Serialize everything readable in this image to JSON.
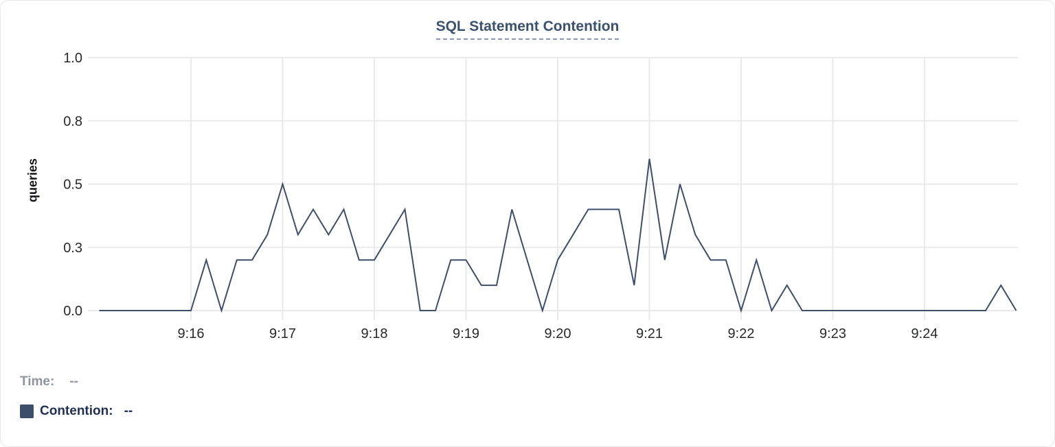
{
  "chart": {
    "title": "SQL Statement Contention"
  },
  "chart_data": {
    "type": "line",
    "title": "SQL Statement Contention",
    "xlabel": "",
    "ylabel": "queries",
    "ylim": [
      0,
      1
    ],
    "grid": true,
    "legend_position": "bottom-left",
    "x_start": "9:15:00",
    "x_end": "9:25:00",
    "interval_seconds": 10,
    "x_tick_labels": [
      "9:16",
      "9:17",
      "9:18",
      "9:19",
      "9:20",
      "9:21",
      "9:22",
      "9:23",
      "9:24"
    ],
    "y_ticks": [
      {
        "value": 0,
        "label": "0.0"
      },
      {
        "value": 0.25,
        "label": "0.3"
      },
      {
        "value": 0.5,
        "label": "0.5"
      },
      {
        "value": 0.75,
        "label": "0.8"
      },
      {
        "value": 1.0,
        "label": "1.0"
      }
    ],
    "series": [
      {
        "name": "Contention",
        "color": "#3d4e6b",
        "points": [
          [
            "9:15:00",
            0.0
          ],
          [
            "9:15:10",
            0.0
          ],
          [
            "9:15:20",
            0.0
          ],
          [
            "9:15:30",
            0.0
          ],
          [
            "9:15:40",
            0.0
          ],
          [
            "9:15:50",
            0.0
          ],
          [
            "9:16:00",
            0.0
          ],
          [
            "9:16:10",
            0.2
          ],
          [
            "9:16:20",
            0.0
          ],
          [
            "9:16:30",
            0.2
          ],
          [
            "9:16:40",
            0.2
          ],
          [
            "9:16:50",
            0.3
          ],
          [
            "9:17:00",
            0.5
          ],
          [
            "9:17:10",
            0.3
          ],
          [
            "9:17:20",
            0.4
          ],
          [
            "9:17:30",
            0.3
          ],
          [
            "9:17:40",
            0.4
          ],
          [
            "9:17:50",
            0.2
          ],
          [
            "9:18:00",
            0.2
          ],
          [
            "9:18:10",
            0.3
          ],
          [
            "9:18:20",
            0.4
          ],
          [
            "9:18:30",
            0.0
          ],
          [
            "9:18:40",
            0.0
          ],
          [
            "9:18:50",
            0.2
          ],
          [
            "9:19:00",
            0.2
          ],
          [
            "9:19:10",
            0.1
          ],
          [
            "9:19:20",
            0.1
          ],
          [
            "9:19:30",
            0.4
          ],
          [
            "9:19:40",
            0.2
          ],
          [
            "9:19:50",
            0.0
          ],
          [
            "9:20:00",
            0.2
          ],
          [
            "9:20:10",
            0.3
          ],
          [
            "9:20:20",
            0.4
          ],
          [
            "9:20:30",
            0.4
          ],
          [
            "9:20:40",
            0.4
          ],
          [
            "9:20:50",
            0.1
          ],
          [
            "9:21:00",
            0.6
          ],
          [
            "9:21:10",
            0.2
          ],
          [
            "9:21:20",
            0.5
          ],
          [
            "9:21:30",
            0.3
          ],
          [
            "9:21:40",
            0.2
          ],
          [
            "9:21:50",
            0.2
          ],
          [
            "9:22:00",
            0.0
          ],
          [
            "9:22:10",
            0.2
          ],
          [
            "9:22:20",
            0.0
          ],
          [
            "9:22:30",
            0.1
          ],
          [
            "9:22:40",
            0.0
          ],
          [
            "9:22:50",
            0.0
          ],
          [
            "9:23:00",
            0.0
          ],
          [
            "9:23:10",
            0.0
          ],
          [
            "9:23:20",
            0.0
          ],
          [
            "9:23:30",
            0.0
          ],
          [
            "9:23:40",
            0.0
          ],
          [
            "9:23:50",
            0.0
          ],
          [
            "9:24:00",
            0.0
          ],
          [
            "9:24:10",
            0.0
          ],
          [
            "9:24:20",
            0.0
          ],
          [
            "9:24:30",
            0.0
          ],
          [
            "9:24:40",
            0.0
          ],
          [
            "9:24:50",
            0.1
          ],
          [
            "9:25:00",
            0.0
          ]
        ]
      }
    ]
  },
  "tooltip": {
    "time_label": "Time:",
    "time_value": "--",
    "contention_label": "Contention:",
    "contention_value": "--"
  },
  "colors": {
    "line": "#3d4e6b",
    "swatch": "#3d4e6b",
    "title": "#3b5170",
    "title_underline": "#8c93bd",
    "grid": "#e9eaeb",
    "tick_text": "#26282a",
    "muted_text": "#8f95a0",
    "legend_text": "#1f2f55",
    "background": "#ffffff"
  }
}
